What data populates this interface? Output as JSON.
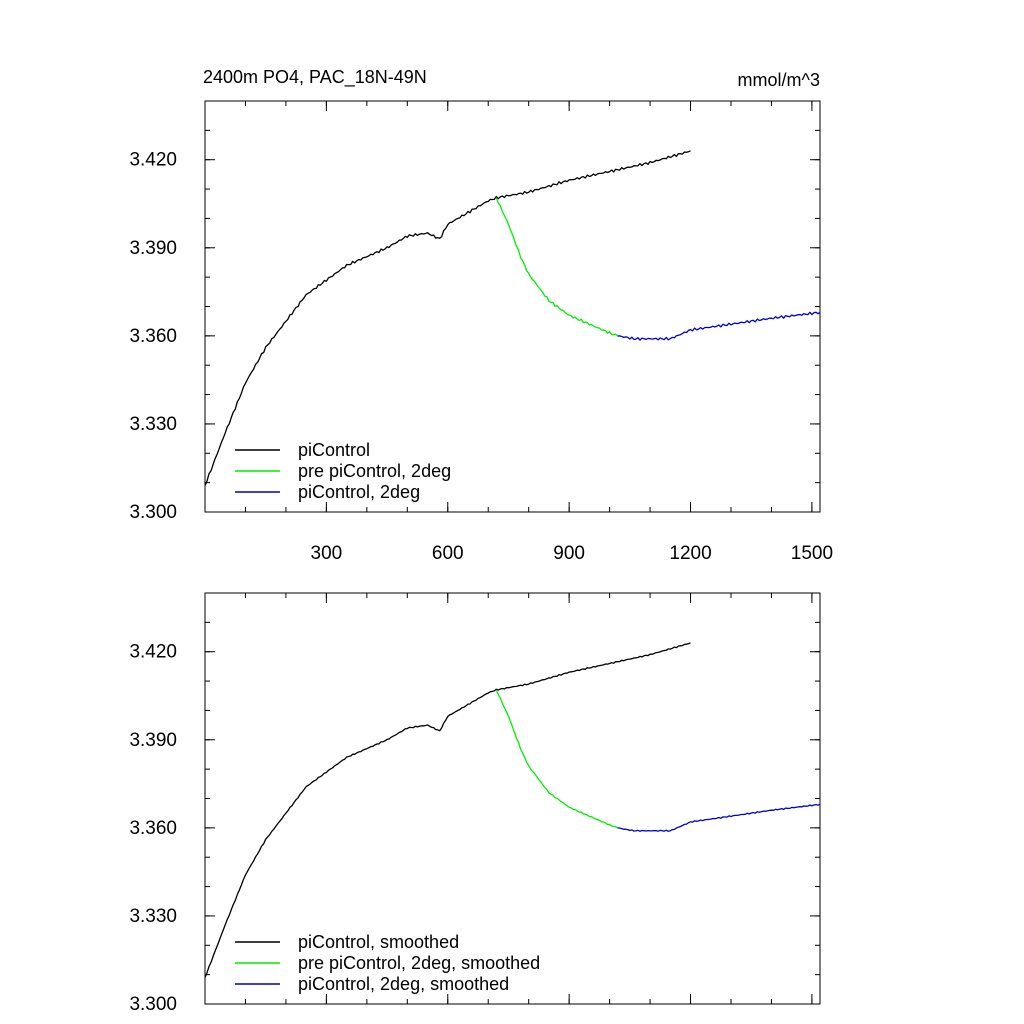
{
  "figure": {
    "title": "2400m PO4, PAC_18N-49N",
    "units": "mmol/m^3"
  },
  "colors": {
    "piControl": "#000000",
    "pre_piControl_2deg": "#00ee00",
    "piControl_2deg": "#0000cc"
  },
  "chart_data": [
    {
      "type": "line",
      "title": "2400m PO4, PAC_18N-49N",
      "units": "mmol/m^3",
      "xlim": [
        0,
        1520
      ],
      "ylim": [
        3.3,
        3.44
      ],
      "xticks": [
        300,
        600,
        900,
        1200,
        1500
      ],
      "xtick_labels": [
        "300",
        "600",
        "900",
        "1200",
        "1500"
      ],
      "yticks": [
        3.3,
        3.33,
        3.36,
        3.39,
        3.42
      ],
      "ytick_labels": [
        "3.300",
        "3.330",
        "3.360",
        "3.390",
        "3.420"
      ],
      "grid": false,
      "legend_position": "bottom-left",
      "series": [
        {
          "name": "piControl",
          "color": "#000000",
          "x": [
            0,
            50,
            100,
            150,
            200,
            250,
            300,
            350,
            400,
            450,
            500,
            550,
            580,
            600,
            650,
            700,
            720,
            800,
            900,
            1000,
            1100,
            1200
          ],
          "y": [
            3.309,
            3.327,
            3.344,
            3.356,
            3.365,
            3.374,
            3.379,
            3.384,
            3.387,
            3.39,
            3.394,
            3.395,
            3.393,
            3.398,
            3.402,
            3.406,
            3.407,
            3.409,
            3.413,
            3.416,
            3.419,
            3.423
          ]
        },
        {
          "name": "pre piControl, 2deg",
          "color": "#00ee00",
          "x": [
            720,
            750,
            780,
            800,
            850,
            900,
            950,
            1000,
            1020
          ],
          "y": [
            3.407,
            3.398,
            3.387,
            3.381,
            3.372,
            3.367,
            3.364,
            3.361,
            3.36
          ]
        },
        {
          "name": "piControl, 2deg",
          "color": "#0000cc",
          "x": [
            1020,
            1060,
            1100,
            1150,
            1200,
            1300,
            1400,
            1520
          ],
          "y": [
            3.36,
            3.359,
            3.359,
            3.359,
            3.362,
            3.364,
            3.366,
            3.368
          ]
        }
      ]
    },
    {
      "type": "line",
      "xlim": [
        0,
        1520
      ],
      "ylim": [
        3.3,
        3.44
      ],
      "xticks": [
        300,
        600,
        900,
        1200,
        1500
      ],
      "yticks": [
        3.3,
        3.33,
        3.36,
        3.39,
        3.42
      ],
      "ytick_labels": [
        "3.300",
        "3.330",
        "3.360",
        "3.390",
        "3.420"
      ],
      "grid": false,
      "legend_position": "bottom-left",
      "series": [
        {
          "name": "piControl, smoothed",
          "color": "#000000",
          "x": [
            0,
            50,
            100,
            150,
            200,
            250,
            300,
            350,
            400,
            450,
            500,
            550,
            580,
            600,
            650,
            700,
            720,
            800,
            900,
            1000,
            1100,
            1200
          ],
          "y": [
            3.309,
            3.327,
            3.344,
            3.356,
            3.365,
            3.374,
            3.379,
            3.384,
            3.387,
            3.39,
            3.394,
            3.395,
            3.393,
            3.398,
            3.402,
            3.406,
            3.407,
            3.409,
            3.413,
            3.416,
            3.419,
            3.423
          ]
        },
        {
          "name": "pre piControl, 2deg, smoothed",
          "color": "#00ee00",
          "x": [
            720,
            750,
            780,
            800,
            850,
            900,
            950,
            1000,
            1020
          ],
          "y": [
            3.407,
            3.398,
            3.387,
            3.381,
            3.372,
            3.367,
            3.364,
            3.361,
            3.36
          ]
        },
        {
          "name": "piControl, 2deg, smoothed",
          "color": "#0000cc",
          "x": [
            1020,
            1060,
            1100,
            1150,
            1200,
            1300,
            1400,
            1520
          ],
          "y": [
            3.36,
            3.359,
            3.359,
            3.359,
            3.362,
            3.364,
            3.366,
            3.368
          ]
        }
      ]
    }
  ]
}
